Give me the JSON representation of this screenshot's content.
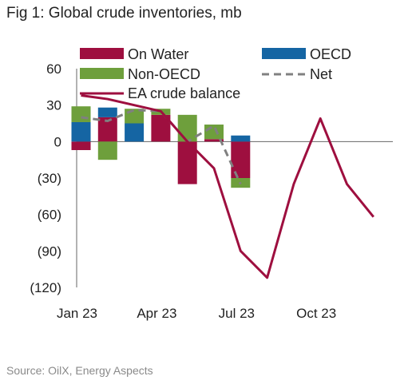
{
  "figure": {
    "title": "Fig 1: Global crude inventories, mb",
    "source": "Source: OilX, Energy Aspects"
  },
  "colors": {
    "on_water": "#9e0f3f",
    "oecd": "#1565a3",
    "non_oecd": "#6e9f3c",
    "net": "#808080",
    "balance": "#9e0f3f",
    "grid": "#cccccc",
    "axis": "#666666"
  },
  "chart_data": {
    "type": "bar",
    "title": "Fig 1: Global crude inventories, mb",
    "ylim": [
      -120,
      60
    ],
    "yticks": [
      60,
      30,
      0,
      -30,
      -60,
      -90,
      -120
    ],
    "ytick_labels": [
      "60",
      "30",
      "0",
      "(30)",
      "(60)",
      "(90)",
      "(120)"
    ],
    "xticks": [
      "Jan 23",
      "Apr 23",
      "Jul 23",
      "Oct 23"
    ],
    "legend": {
      "placement": "top",
      "entries": [
        "On Water",
        "OECD",
        "Non-OECD",
        "Net",
        "EA crude balance"
      ]
    },
    "bar_months": [
      "Jan 23",
      "Feb 23",
      "Mar 23",
      "Apr 23",
      "May 23",
      "Jun 23",
      "Jul 23"
    ],
    "series": [
      {
        "name": "On Water",
        "kind": "bar",
        "values": [
          -7,
          20,
          0,
          22,
          -35,
          2,
          -30
        ]
      },
      {
        "name": "OECD",
        "kind": "bar",
        "values": [
          16,
          8,
          15,
          0,
          0,
          0,
          5
        ]
      },
      {
        "name": "Non-OECD",
        "kind": "bar",
        "values": [
          13,
          -15,
          12,
          5,
          22,
          12,
          -8
        ]
      },
      {
        "name": "Net",
        "kind": "line-dashed",
        "values": [
          20,
          17,
          26,
          25,
          0,
          13,
          -35
        ]
      },
      {
        "name": "EA crude balance",
        "kind": "line",
        "months": [
          "Jan 23",
          "Feb 23",
          "Mar 23",
          "Apr 23",
          "May 23",
          "Jun 23",
          "Jul 23",
          "Aug 23",
          "Sep 23",
          "Oct 23",
          "Nov 23",
          "Dec 23"
        ],
        "values": [
          38,
          35,
          30,
          25,
          0,
          -22,
          -90,
          -112,
          -35,
          19,
          -35,
          -62
        ]
      }
    ]
  }
}
